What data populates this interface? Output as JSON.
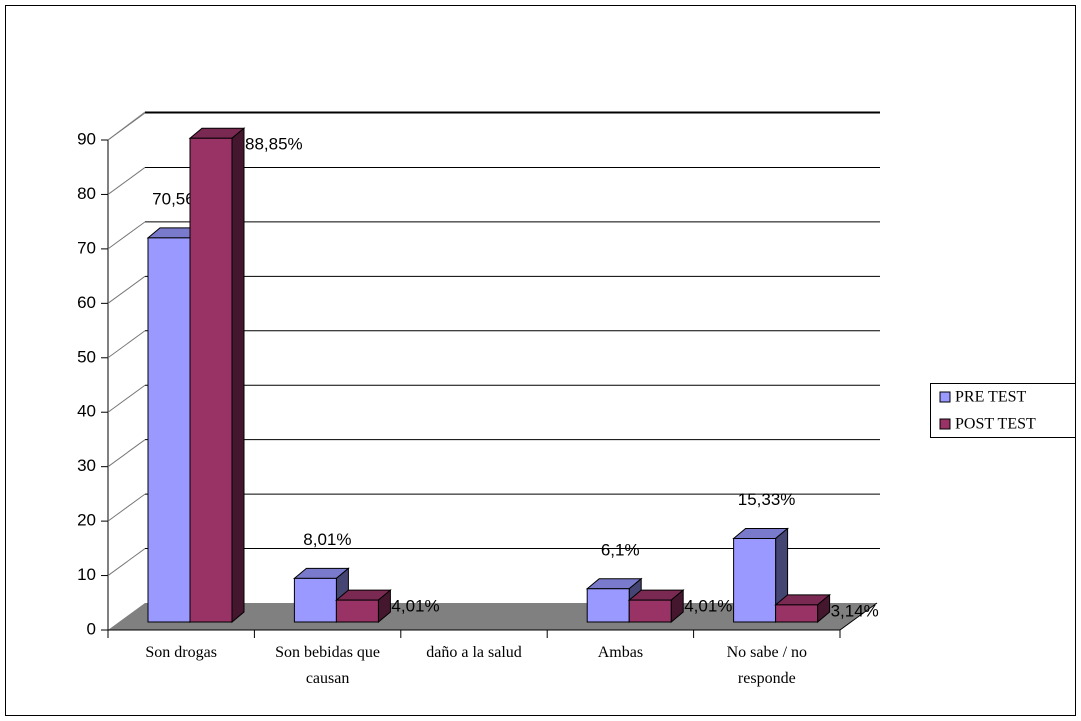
{
  "chart_data": {
    "type": "bar3d",
    "categories": [
      "Son drogas",
      "Son bebidas que causan",
      "daño a la salud",
      "Ambas",
      "No sabe / no responde"
    ],
    "series": [
      {
        "name": "PRE TEST",
        "color": "#9999ff",
        "values": [
          70.56,
          8.01,
          null,
          6.1,
          15.33
        ],
        "value_labels": [
          "70,56%",
          "8,01%",
          null,
          "6,1%",
          "15,33%"
        ]
      },
      {
        "name": "POST TEST",
        "color": "#993366",
        "values": [
          88.85,
          4.01,
          null,
          4.01,
          3.14
        ],
        "value_labels": [
          "88,85%",
          "4,01%",
          null,
          "4,01%",
          "3,14%"
        ]
      }
    ],
    "ylim": [
      0,
      90
    ],
    "yticks": [
      0,
      10,
      20,
      30,
      40,
      50,
      60,
      70,
      80,
      90
    ],
    "grid": true,
    "legend": "right"
  }
}
